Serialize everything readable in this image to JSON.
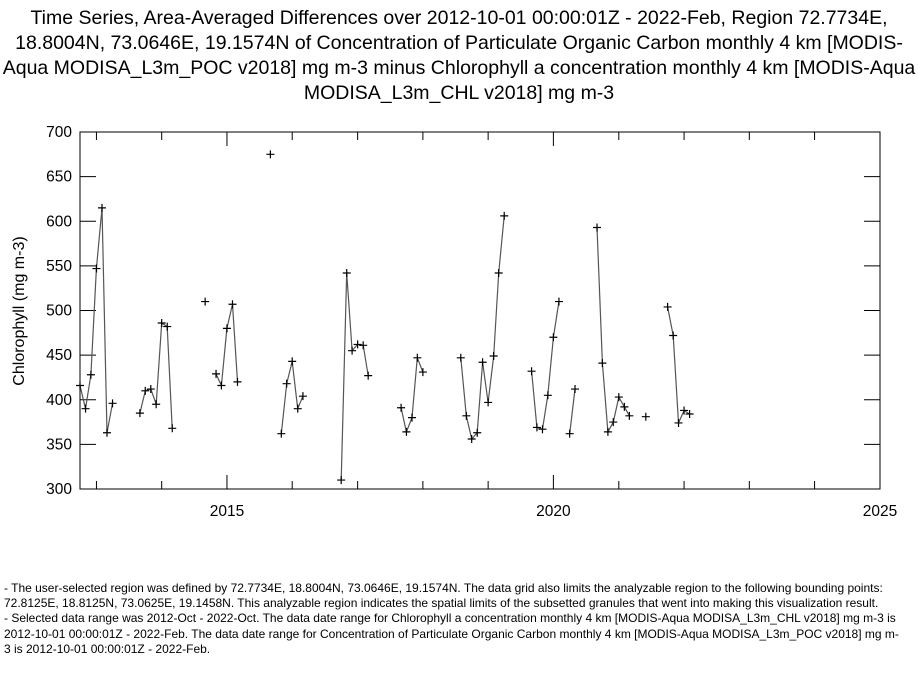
{
  "chart_data": {
    "type": "line",
    "title": "Time Series, Area-Averaged Differences over 2012-10-01 00:00:01Z - 2022-Feb, Region 72.7734E, 18.8004N, 73.0646E, 19.1574N of Concentration of Particulate Organic Carbon monthly 4 km [MODIS-Aqua MODISA_L3m_POC v2018] mg m-3 minus Chlorophyll a concentration monthly 4 km [MODIS-Aqua MODISA_L3m_CHL v2018] mg m-3",
    "xlabel": "",
    "ylabel": "Chlorophyll (mg m-3)",
    "xlim": [
      "2012-10-01",
      "2025-01-01"
    ],
    "ylim": [
      300,
      700
    ],
    "x_ticks": [
      "2015",
      "2020",
      "2025"
    ],
    "y_ticks": [
      300,
      350,
      400,
      450,
      500,
      550,
      600,
      650,
      700
    ],
    "grid": false,
    "marker": "+",
    "line_color": "#555555",
    "segments": [
      [
        [
          "2012-10",
          416
        ],
        [
          "2012-11",
          390
        ],
        [
          "2012-12",
          428
        ],
        [
          "2013-01",
          547
        ],
        [
          "2013-02",
          615
        ],
        [
          "2013-03",
          363
        ],
        [
          "2013-04",
          396
        ]
      ],
      [
        [
          "2013-09",
          385
        ],
        [
          "2013-10",
          410
        ],
        [
          "2013-11",
          412
        ],
        [
          "2013-12",
          395
        ],
        [
          "2014-01",
          486
        ],
        [
          "2014-02",
          482
        ],
        [
          "2014-03",
          368
        ]
      ],
      [
        [
          "2014-09",
          510
        ]
      ],
      [
        [
          "2014-11",
          429
        ],
        [
          "2014-12",
          416
        ],
        [
          "2015-01",
          480
        ],
        [
          "2015-02",
          507
        ],
        [
          "2015-03",
          420
        ]
      ],
      [
        [
          "2015-09",
          675
        ]
      ],
      [
        [
          "2015-11",
          362
        ],
        [
          "2015-12",
          418
        ],
        [
          "2016-01",
          443
        ],
        [
          "2016-02",
          390
        ],
        [
          "2016-03",
          404
        ]
      ],
      [
        [
          "2016-10",
          310
        ],
        [
          "2016-11",
          542
        ],
        [
          "2016-12",
          455
        ],
        [
          "2017-01",
          462
        ],
        [
          "2017-02",
          461
        ],
        [
          "2017-03",
          427
        ]
      ],
      [
        [
          "2017-09",
          391
        ],
        [
          "2017-10",
          364
        ],
        [
          "2017-11",
          380
        ],
        [
          "2017-12",
          447
        ],
        [
          "2018-01",
          431
        ]
      ],
      [
        [
          "2018-08",
          447
        ],
        [
          "2018-09",
          382
        ],
        [
          "2018-10",
          356
        ],
        [
          "2018-11",
          363
        ],
        [
          "2018-12",
          442
        ],
        [
          "2019-01",
          397
        ],
        [
          "2019-02",
          449
        ],
        [
          "2019-03",
          542
        ],
        [
          "2019-04",
          606
        ]
      ],
      [
        [
          "2019-09",
          432
        ],
        [
          "2019-10",
          369
        ],
        [
          "2019-11",
          367
        ],
        [
          "2019-12",
          405
        ],
        [
          "2020-01",
          470
        ],
        [
          "2020-02",
          510
        ]
      ],
      [
        [
          "2020-04",
          362
        ],
        [
          "2020-05",
          412
        ]
      ],
      [
        [
          "2020-09",
          593
        ],
        [
          "2020-10",
          441
        ],
        [
          "2020-11",
          364
        ],
        [
          "2020-12",
          375
        ],
        [
          "2021-01",
          403
        ],
        [
          "2021-02",
          392
        ],
        [
          "2021-03",
          382
        ]
      ],
      [
        [
          "2021-06",
          381
        ]
      ],
      [
        [
          "2021-10",
          504
        ],
        [
          "2021-11",
          472
        ],
        [
          "2021-12",
          374
        ],
        [
          "2022-01",
          388
        ],
        [
          "2022-02",
          384
        ]
      ]
    ]
  },
  "notes": [
    "- The user-selected region was defined by 72.7734E, 18.8004N, 73.0646E, 19.1574N. The data grid also limits the analyzable region to the following bounding points: 72.8125E, 18.8125N, 73.0625E, 19.1458N. This analyzable region indicates the spatial limits of the subsetted granules that went into making this visualization result.",
    "- Selected data range was 2012-Oct - 2022-Oct. The data date range for Chlorophyll a concentration monthly 4 km [MODIS-Aqua MODISA_L3m_CHL v2018] mg m-3 is 2012-10-01 00:00:01Z - 2022-Feb. The data date range for Concentration of Particulate Organic Carbon monthly 4 km [MODIS-Aqua MODISA_L3m_POC v2018] mg m-3 is 2012-10-01 00:00:01Z - 2022-Feb."
  ]
}
